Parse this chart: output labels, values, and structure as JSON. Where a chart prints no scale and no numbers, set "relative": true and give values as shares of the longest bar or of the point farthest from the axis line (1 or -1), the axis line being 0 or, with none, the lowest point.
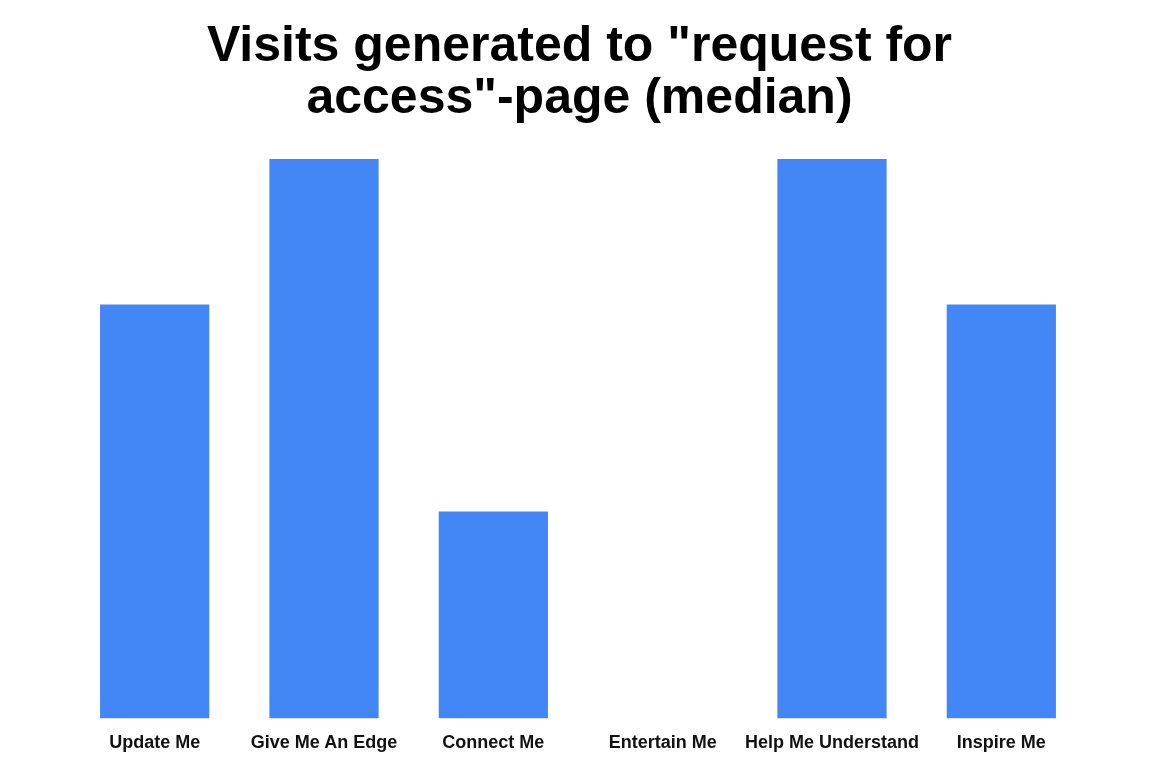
{
  "chart_data": {
    "type": "bar",
    "title": "Visits generated to \"request for access\"-page (median)",
    "categories": [
      "Update Me",
      "Give Me An Edge",
      "Connect Me",
      "Entertain Me",
      "Help Me Understand",
      "Inspire Me"
    ],
    "values": [
      0.74,
      1,
      0.37,
      0,
      1,
      0.74
    ],
    "color": "#4287f5",
    "relative": true,
    "grid": false,
    "legend": false
  }
}
